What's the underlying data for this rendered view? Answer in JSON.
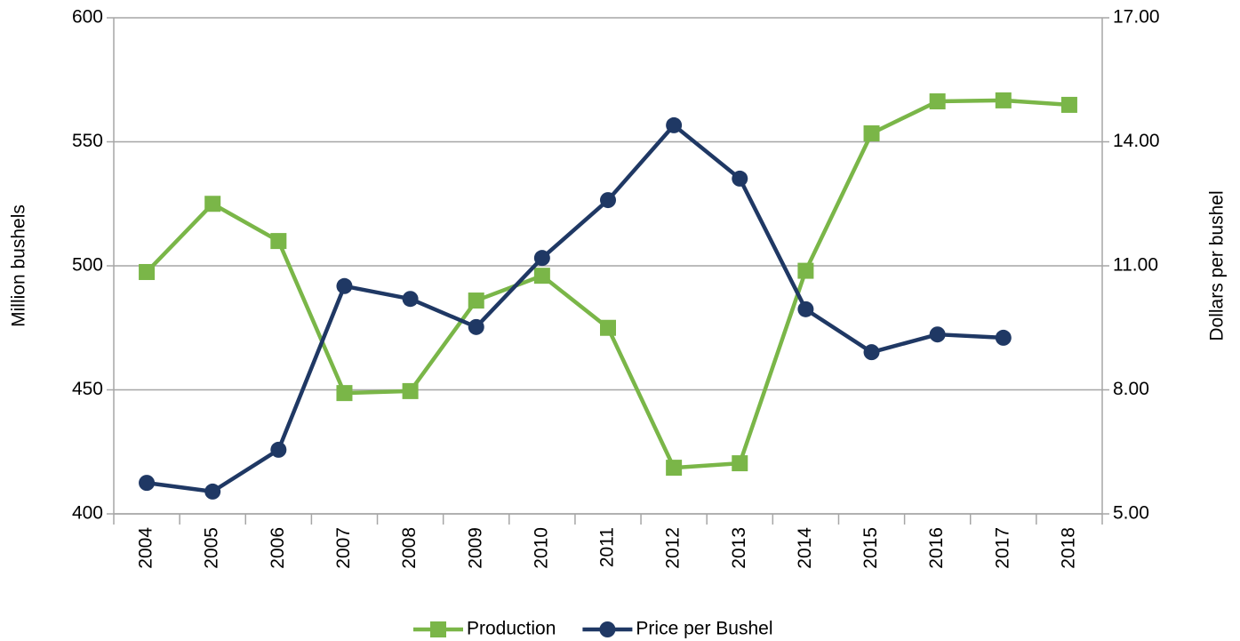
{
  "chart_data": {
    "type": "line",
    "categories": [
      "2004",
      "2005",
      "2006",
      "2007",
      "2008",
      "2009",
      "2010",
      "2011",
      "2012",
      "2013",
      "2014",
      "2015",
      "2016",
      "2017",
      "2018"
    ],
    "ylabel": "Million bushels",
    "y2label": "Dollars per bushel",
    "ylim": [
      400,
      600
    ],
    "yticks": [
      400,
      450,
      500,
      550,
      600
    ],
    "y2lim": [
      5,
      17
    ],
    "y2ticks": [
      {
        "value": 5,
        "label": "5.00"
      },
      {
        "value": 8,
        "label": "8.00"
      },
      {
        "value": 11,
        "label": "11.00"
      },
      {
        "value": 14,
        "label": "14.00"
      },
      {
        "value": 17,
        "label": "17.00"
      }
    ],
    "grid": true,
    "legend": "bottom",
    "series": [
      {
        "name": "Production",
        "color": "#7ab648",
        "marker": "square",
        "values": [
          497.5,
          525,
          510,
          448.7,
          449.5,
          486,
          496,
          475,
          418.6,
          420.4,
          498,
          553.4,
          566.3,
          566.7,
          564.9
        ]
      },
      {
        "name": "Price per Bushel",
        "color": "#1f3864",
        "marker": "circle",
        "axis": "y2",
        "values": [
          5.75,
          5.54,
          6.55,
          10.51,
          10.2,
          9.52,
          11.19,
          12.59,
          14.4,
          13.11,
          9.95,
          8.91,
          9.34,
          9.26,
          null
        ]
      }
    ]
  }
}
